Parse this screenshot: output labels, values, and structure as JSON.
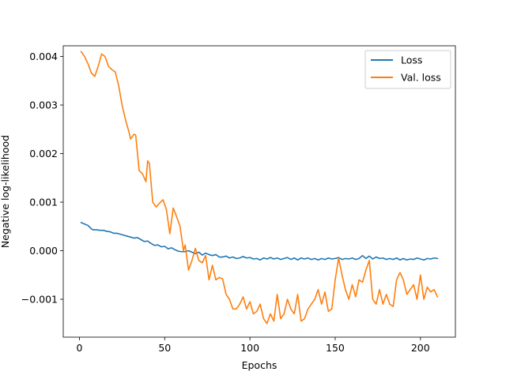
{
  "chart_data": {
    "type": "line",
    "title": "",
    "xlabel": "Epochs",
    "ylabel": "Negative log-likelihood",
    "xlim": [
      -9.5,
      220.5
    ],
    "ylim": [
      -0.00178,
      0.00422
    ],
    "xticks": [
      0,
      50,
      100,
      150,
      200
    ],
    "xtick_labels": [
      "0",
      "50",
      "100",
      "150",
      "200"
    ],
    "yticks": [
      -0.001,
      0.0,
      0.001,
      0.002,
      0.003,
      0.004
    ],
    "ytick_labels": [
      "−0.001",
      "0.000",
      "0.001",
      "0.002",
      "0.003",
      "0.004"
    ],
    "grid": false,
    "legend_position": "top-right",
    "series": [
      {
        "name": "Loss",
        "color": "#1f77b4",
        "points": [
          [
            1,
            0.00058
          ],
          [
            3,
            0.00055
          ],
          [
            5,
            0.00052
          ],
          [
            7,
            0.00045
          ],
          [
            8,
            0.00043
          ],
          [
            10,
            0.00043
          ],
          [
            12,
            0.00042
          ],
          [
            14,
            0.00042
          ],
          [
            16,
            0.0004
          ],
          [
            18,
            0.00039
          ],
          [
            20,
            0.00036
          ],
          [
            22,
            0.00036
          ],
          [
            24,
            0.00034
          ],
          [
            26,
            0.00032
          ],
          [
            28,
            0.0003
          ],
          [
            30,
            0.00028
          ],
          [
            32,
            0.00026
          ],
          [
            34,
            0.00027
          ],
          [
            36,
            0.00023
          ],
          [
            38,
            0.00019
          ],
          [
            40,
            0.0002
          ],
          [
            42,
            0.00015
          ],
          [
            44,
            0.00011
          ],
          [
            46,
            0.00012
          ],
          [
            48,
            8e-05
          ],
          [
            50,
            9e-05
          ],
          [
            52,
            4e-05
          ],
          [
            54,
            6e-05
          ],
          [
            56,
            2e-05
          ],
          [
            58,
            -1e-05
          ],
          [
            60,
            -2e-05
          ],
          [
            62,
            -2e-05
          ],
          [
            64,
            0.0
          ],
          [
            66,
            -3e-05
          ],
          [
            68,
            -6e-05
          ],
          [
            70,
            -3e-05
          ],
          [
            72,
            -9e-05
          ],
          [
            74,
            -5e-05
          ],
          [
            76,
            -8e-05
          ],
          [
            78,
            -0.0001
          ],
          [
            80,
            -8e-05
          ],
          [
            82,
            -0.00013
          ],
          [
            84,
            -0.00013
          ],
          [
            86,
            -0.00011
          ],
          [
            88,
            -0.00015
          ],
          [
            90,
            -0.00013
          ],
          [
            92,
            -0.00016
          ],
          [
            94,
            -0.00015
          ],
          [
            96,
            -0.00012
          ],
          [
            98,
            -0.00015
          ],
          [
            100,
            -0.00014
          ],
          [
            102,
            -0.00017
          ],
          [
            104,
            -0.00016
          ],
          [
            106,
            -0.00019
          ],
          [
            108,
            -0.00015
          ],
          [
            110,
            -0.00017
          ],
          [
            112,
            -0.00014
          ],
          [
            114,
            -0.00017
          ],
          [
            116,
            -0.00015
          ],
          [
            118,
            -0.00018
          ],
          [
            120,
            -0.00016
          ],
          [
            122,
            -0.00014
          ],
          [
            124,
            -0.00018
          ],
          [
            126,
            -0.00015
          ],
          [
            128,
            -0.00019
          ],
          [
            130,
            -0.00015
          ],
          [
            132,
            -0.00017
          ],
          [
            134,
            -0.00015
          ],
          [
            136,
            -0.00018
          ],
          [
            138,
            -0.00016
          ],
          [
            140,
            -0.00019
          ],
          [
            142,
            -0.00016
          ],
          [
            144,
            -0.00018
          ],
          [
            146,
            -0.00015
          ],
          [
            148,
            -0.00017
          ],
          [
            150,
            -0.00016
          ],
          [
            152,
            -0.00014
          ],
          [
            154,
            -0.00018
          ],
          [
            156,
            -0.00016
          ],
          [
            158,
            -0.00017
          ],
          [
            160,
            -0.00015
          ],
          [
            162,
            -0.00018
          ],
          [
            164,
            -0.00016
          ],
          [
            166,
            -0.0001
          ],
          [
            168,
            -0.00016
          ],
          [
            170,
            -0.00011
          ],
          [
            172,
            -0.00017
          ],
          [
            174,
            -0.00013
          ],
          [
            176,
            -0.00016
          ],
          [
            178,
            -0.00015
          ],
          [
            180,
            -0.00018
          ],
          [
            182,
            -0.00016
          ],
          [
            184,
            -0.00018
          ],
          [
            186,
            -0.00015
          ],
          [
            188,
            -0.00019
          ],
          [
            190,
            -0.00016
          ],
          [
            192,
            -0.00019
          ],
          [
            194,
            -0.00017
          ],
          [
            196,
            -0.00018
          ],
          [
            198,
            -0.00015
          ],
          [
            200,
            -0.00017
          ],
          [
            202,
            -0.00019
          ],
          [
            204,
            -0.00016
          ],
          [
            206,
            -0.00017
          ],
          [
            208,
            -0.00015
          ],
          [
            210,
            -0.00016
          ]
        ]
      },
      {
        "name": "Val. loss",
        "color": "#ff7f0e",
        "points": [
          [
            1,
            0.0041
          ],
          [
            3,
            0.004
          ],
          [
            5,
            0.00385
          ],
          [
            7,
            0.00366
          ],
          [
            9,
            0.00359
          ],
          [
            11,
            0.0038
          ],
          [
            13,
            0.00405
          ],
          [
            15,
            0.004
          ],
          [
            17,
            0.0038
          ],
          [
            19,
            0.00373
          ],
          [
            21,
            0.00368
          ],
          [
            23,
            0.0034
          ],
          [
            25,
            0.003
          ],
          [
            27,
            0.0027
          ],
          [
            29,
            0.00245
          ],
          [
            30,
            0.0023
          ],
          [
            32,
            0.0024
          ],
          [
            33,
            0.00238
          ],
          [
            35,
            0.00165
          ],
          [
            37,
            0.00158
          ],
          [
            39,
            0.00142
          ],
          [
            40,
            0.00185
          ],
          [
            41,
            0.0018
          ],
          [
            43,
            0.001
          ],
          [
            45,
            0.0009
          ],
          [
            47,
            0.00098
          ],
          [
            49,
            0.00105
          ],
          [
            51,
            0.00085
          ],
          [
            53,
            0.00035
          ],
          [
            55,
            0.00088
          ],
          [
            57,
            0.0007
          ],
          [
            59,
            0.0005
          ],
          [
            61,
            0.0
          ],
          [
            62,
            0.00012
          ],
          [
            64,
            -0.0004
          ],
          [
            66,
            -0.0002
          ],
          [
            68,
            5e-05
          ],
          [
            70,
            -0.0002
          ],
          [
            72,
            -0.00025
          ],
          [
            74,
            -0.0001
          ],
          [
            76,
            -0.0006
          ],
          [
            78,
            -0.0003
          ],
          [
            80,
            -0.0006
          ],
          [
            82,
            -0.00055
          ],
          [
            84,
            -0.00058
          ],
          [
            86,
            -0.0009
          ],
          [
            88,
            -0.001
          ],
          [
            90,
            -0.0012
          ],
          [
            92,
            -0.0012
          ],
          [
            94,
            -0.0011
          ],
          [
            96,
            -0.00095
          ],
          [
            98,
            -0.0012
          ],
          [
            100,
            -0.00105
          ],
          [
            102,
            -0.0013
          ],
          [
            104,
            -0.00125
          ],
          [
            106,
            -0.0011
          ],
          [
            108,
            -0.0014
          ],
          [
            110,
            -0.0015
          ],
          [
            112,
            -0.0013
          ],
          [
            114,
            -0.00145
          ],
          [
            116,
            -0.0009
          ],
          [
            118,
            -0.0014
          ],
          [
            120,
            -0.0013
          ],
          [
            122,
            -0.001
          ],
          [
            124,
            -0.0012
          ],
          [
            126,
            -0.0013
          ],
          [
            128,
            -0.0009
          ],
          [
            130,
            -0.00145
          ],
          [
            132,
            -0.0014
          ],
          [
            134,
            -0.0012
          ],
          [
            136,
            -0.0011
          ],
          [
            138,
            -0.001
          ],
          [
            140,
            -0.0008
          ],
          [
            142,
            -0.0011
          ],
          [
            144,
            -0.00085
          ],
          [
            146,
            -0.00125
          ],
          [
            148,
            -0.0012
          ],
          [
            150,
            -0.0006
          ],
          [
            152,
            -0.00015
          ],
          [
            154,
            -0.0005
          ],
          [
            156,
            -0.0008
          ],
          [
            158,
            -0.001
          ],
          [
            160,
            -0.0007
          ],
          [
            162,
            -0.00095
          ],
          [
            164,
            -0.0006
          ],
          [
            166,
            -0.00065
          ],
          [
            168,
            -0.0004
          ],
          [
            170,
            -0.0002
          ],
          [
            172,
            -0.001
          ],
          [
            174,
            -0.0011
          ],
          [
            176,
            -0.0008
          ],
          [
            178,
            -0.0011
          ],
          [
            180,
            -0.0009
          ],
          [
            182,
            -0.0011
          ],
          [
            184,
            -0.00115
          ],
          [
            186,
            -0.0006
          ],
          [
            188,
            -0.00045
          ],
          [
            190,
            -0.0006
          ],
          [
            192,
            -0.0009
          ],
          [
            194,
            -0.0008
          ],
          [
            196,
            -0.0007
          ],
          [
            198,
            -0.001
          ],
          [
            200,
            -0.0005
          ],
          [
            202,
            -0.001
          ],
          [
            204,
            -0.00075
          ],
          [
            206,
            -0.00085
          ],
          [
            208,
            -0.0008
          ],
          [
            210,
            -0.00095
          ]
        ]
      }
    ]
  }
}
